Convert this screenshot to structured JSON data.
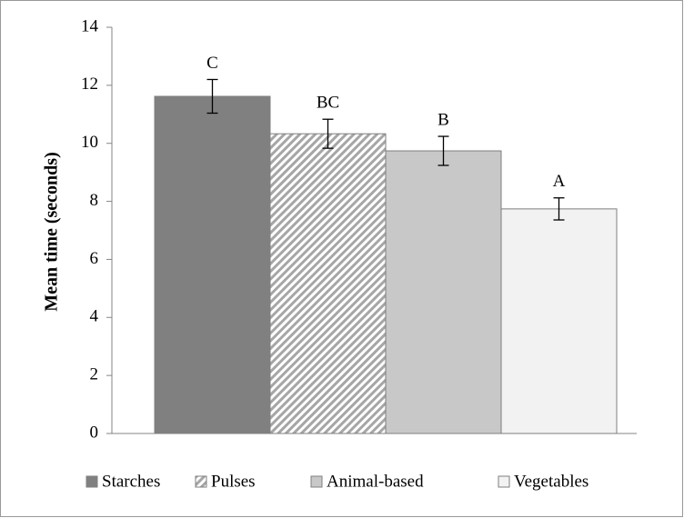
{
  "chart_data": {
    "type": "bar",
    "y_label": "Mean time (seconds)",
    "ylim": [
      0,
      14
    ],
    "yticks": [
      0,
      2,
      4,
      6,
      8,
      10,
      12,
      14
    ],
    "grid": false,
    "legend": "bottom",
    "series": [
      {
        "name": "Starches",
        "color": "#808080",
        "values": [
          11.62
        ],
        "errors": [
          0.58
        ],
        "group_label": "C"
      },
      {
        "name": "Pulses",
        "color": "#a6a6a6",
        "pattern": "hatch",
        "values": [
          10.33
        ],
        "errors": [
          0.5
        ],
        "group_label": "BC"
      },
      {
        "name": "Animal-based",
        "color": "#c8c8c8",
        "values": [
          9.74
        ],
        "errors": [
          0.5
        ],
        "group_label": "B"
      },
      {
        "name": "Vegetables",
        "color": "#f2f2f2",
        "values": [
          7.74
        ],
        "errors": [
          0.38
        ],
        "group_label": "A"
      }
    ]
  }
}
